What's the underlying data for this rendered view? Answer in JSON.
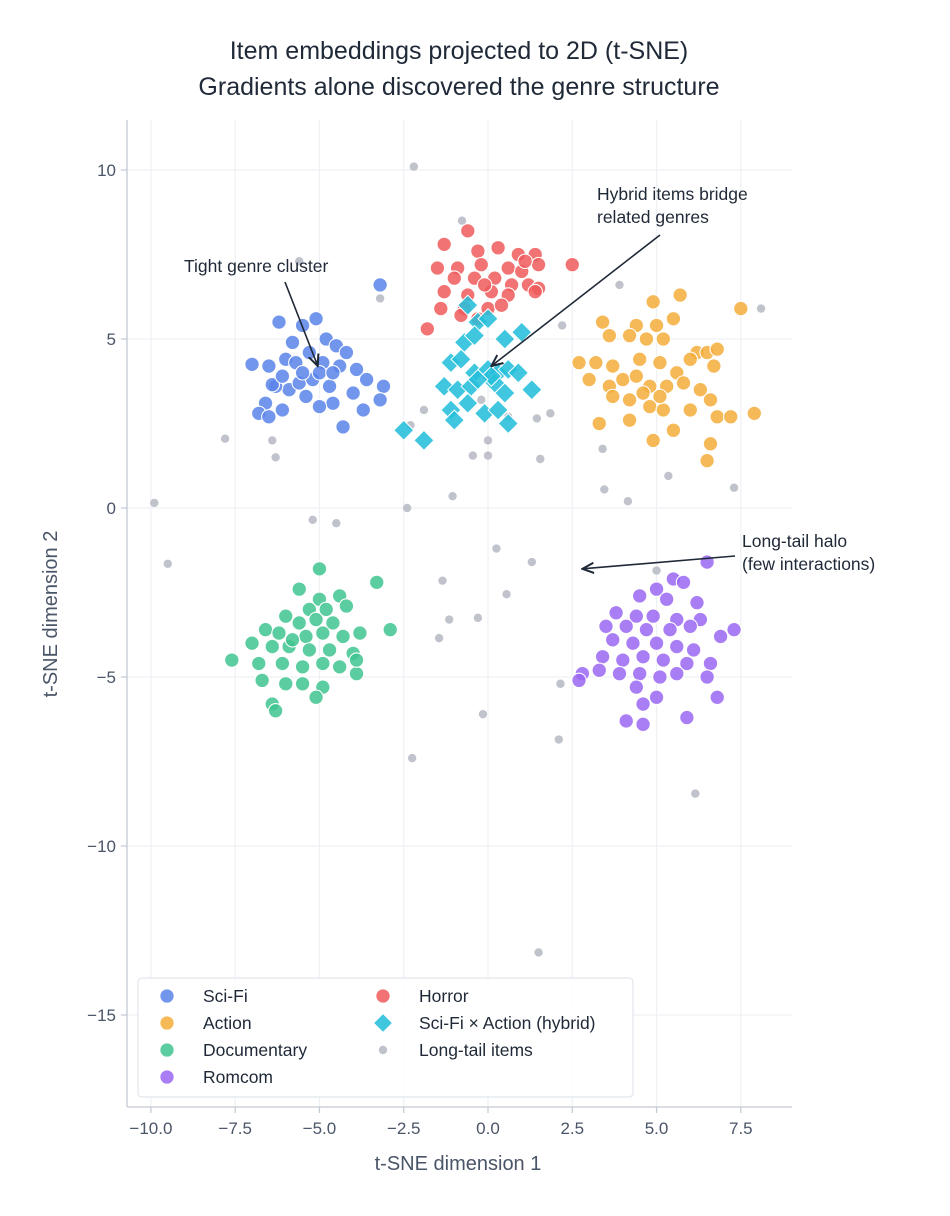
{
  "chart_data": {
    "type": "scatter",
    "title": "Item embeddings projected to 2D (t-SNE)",
    "subtitle": "Gradients alone discovered the genre structure",
    "xlabel": "t-SNE dimension 1",
    "ylabel": "t-SNE dimension 2",
    "xlim": [
      -10.7,
      9.0
    ],
    "ylim": [
      -17.7,
      11.5
    ],
    "x_ticks": [
      -10,
      -7.5,
      -5,
      -2.5,
      0,
      2.5,
      5,
      7.5
    ],
    "x_tick_labels": [
      "−10.0",
      "−7.5",
      "−5.0",
      "−2.5",
      "0.0",
      "2.5",
      "5.0",
      "7.5"
    ],
    "y_ticks": [
      10,
      5,
      0,
      -5,
      -10,
      -15
    ],
    "y_tick_labels": [
      "10",
      "5",
      "0",
      "−5",
      "−10",
      "−15"
    ],
    "grid": true,
    "legend_position": "bottom-left",
    "series": [
      {
        "name": "Sci-Fi",
        "marker": "circle",
        "color": "#5b84ea",
        "points": [
          [
            -5.1,
            5.6
          ],
          [
            -5.5,
            5.4
          ],
          [
            -6.2,
            5.5
          ],
          [
            -5.8,
            4.9
          ],
          [
            -4.8,
            5.0
          ],
          [
            -4.5,
            4.8
          ],
          [
            -4.2,
            4.6
          ],
          [
            -5.3,
            4.6
          ],
          [
            -6.0,
            4.4
          ],
          [
            -6.5,
            4.2
          ],
          [
            -7.0,
            4.25
          ],
          [
            -5.7,
            4.3
          ],
          [
            -4.9,
            4.3
          ],
          [
            -4.4,
            4.2
          ],
          [
            -3.9,
            4.1
          ],
          [
            -3.6,
            3.8
          ],
          [
            -3.1,
            3.6
          ],
          [
            -3.2,
            3.2
          ],
          [
            -3.7,
            2.9
          ],
          [
            -4.3,
            2.4
          ],
          [
            -4.6,
            3.1
          ],
          [
            -5.0,
            3.0
          ],
          [
            -5.4,
            3.3
          ],
          [
            -5.9,
            3.5
          ],
          [
            -6.3,
            3.6
          ],
          [
            -6.6,
            3.1
          ],
          [
            -6.8,
            2.8
          ],
          [
            -6.5,
            2.7
          ],
          [
            -6.1,
            2.9
          ],
          [
            -5.6,
            3.7
          ],
          [
            -5.2,
            3.8
          ],
          [
            -4.7,
            3.6
          ],
          [
            -4.0,
            3.4
          ],
          [
            -3.2,
            6.6
          ],
          [
            -6.4,
            3.65
          ],
          [
            -5.0,
            4.0
          ],
          [
            -4.6,
            4.0
          ],
          [
            -5.5,
            4.0
          ],
          [
            -6.1,
            3.9
          ]
        ]
      },
      {
        "name": "Action",
        "marker": "circle",
        "color": "#f5ad3b",
        "points": [
          [
            4.4,
            5.4
          ],
          [
            5.0,
            5.4
          ],
          [
            5.5,
            5.6
          ],
          [
            5.7,
            6.3
          ],
          [
            4.9,
            6.1
          ],
          [
            7.5,
            5.9
          ],
          [
            3.4,
            5.5
          ],
          [
            3.6,
            5.1
          ],
          [
            4.2,
            5.1
          ],
          [
            4.7,
            5.0
          ],
          [
            5.2,
            5.0
          ],
          [
            6.2,
            4.6
          ],
          [
            6.5,
            4.6
          ],
          [
            6.8,
            4.7
          ],
          [
            2.7,
            4.3
          ],
          [
            3.2,
            4.3
          ],
          [
            3.7,
            4.2
          ],
          [
            4.5,
            4.4
          ],
          [
            5.1,
            4.3
          ],
          [
            5.6,
            4.0
          ],
          [
            6.0,
            4.4
          ],
          [
            6.7,
            4.2
          ],
          [
            3.0,
            3.8
          ],
          [
            3.6,
            3.6
          ],
          [
            4.0,
            3.8
          ],
          [
            4.4,
            3.9
          ],
          [
            4.8,
            3.6
          ],
          [
            5.3,
            3.6
          ],
          [
            5.8,
            3.7
          ],
          [
            6.3,
            3.5
          ],
          [
            3.7,
            3.3
          ],
          [
            4.2,
            3.2
          ],
          [
            4.8,
            3.0
          ],
          [
            5.2,
            2.9
          ],
          [
            6.0,
            2.9
          ],
          [
            6.6,
            3.2
          ],
          [
            6.8,
            2.7
          ],
          [
            7.2,
            2.7
          ],
          [
            7.9,
            2.8
          ],
          [
            3.3,
            2.5
          ],
          [
            4.2,
            2.6
          ],
          [
            5.5,
            2.3
          ],
          [
            4.9,
            2.0
          ],
          [
            6.6,
            1.9
          ],
          [
            6.5,
            1.4
          ],
          [
            5.1,
            3.3
          ],
          [
            4.6,
            3.4
          ]
        ]
      },
      {
        "name": "Documentary",
        "marker": "circle",
        "color": "#3fc48f",
        "points": [
          [
            -5.0,
            -1.8
          ],
          [
            -3.3,
            -2.2
          ],
          [
            -5.6,
            -2.4
          ],
          [
            -5.0,
            -2.7
          ],
          [
            -4.4,
            -2.6
          ],
          [
            -5.3,
            -3.0
          ],
          [
            -4.8,
            -3.0
          ],
          [
            -4.2,
            -2.9
          ],
          [
            -6.0,
            -3.2
          ],
          [
            -5.6,
            -3.4
          ],
          [
            -5.1,
            -3.3
          ],
          [
            -4.6,
            -3.4
          ],
          [
            -2.9,
            -3.6
          ],
          [
            -6.6,
            -3.6
          ],
          [
            -6.2,
            -3.7
          ],
          [
            -5.4,
            -3.8
          ],
          [
            -4.9,
            -3.7
          ],
          [
            -4.3,
            -3.8
          ],
          [
            -3.8,
            -3.7
          ],
          [
            -7.0,
            -4.0
          ],
          [
            -6.4,
            -4.1
          ],
          [
            -5.9,
            -4.1
          ],
          [
            -5.3,
            -4.2
          ],
          [
            -4.7,
            -4.2
          ],
          [
            -4.0,
            -4.3
          ],
          [
            -7.6,
            -4.5
          ],
          [
            -6.8,
            -4.6
          ],
          [
            -6.1,
            -4.6
          ],
          [
            -5.5,
            -4.7
          ],
          [
            -4.9,
            -4.6
          ],
          [
            -4.4,
            -4.7
          ],
          [
            -3.9,
            -4.9
          ],
          [
            -6.7,
            -5.1
          ],
          [
            -6.0,
            -5.2
          ],
          [
            -5.5,
            -5.2
          ],
          [
            -4.9,
            -5.3
          ],
          [
            -5.1,
            -5.6
          ],
          [
            -6.4,
            -5.8
          ],
          [
            -6.3,
            -6.0
          ],
          [
            -3.9,
            -4.5
          ],
          [
            -5.8,
            -3.9
          ]
        ]
      },
      {
        "name": "Romcom",
        "marker": "circle",
        "color": "#9a66f2",
        "points": [
          [
            6.5,
            -1.6
          ],
          [
            5.5,
            -2.1
          ],
          [
            5.8,
            -2.2
          ],
          [
            5.0,
            -2.4
          ],
          [
            4.5,
            -2.6
          ],
          [
            5.3,
            -2.7
          ],
          [
            6.2,
            -2.8
          ],
          [
            3.8,
            -3.1
          ],
          [
            4.4,
            -3.2
          ],
          [
            4.9,
            -3.2
          ],
          [
            5.6,
            -3.3
          ],
          [
            6.3,
            -3.3
          ],
          [
            3.5,
            -3.5
          ],
          [
            4.1,
            -3.5
          ],
          [
            4.7,
            -3.6
          ],
          [
            5.4,
            -3.6
          ],
          [
            6.0,
            -3.5
          ],
          [
            7.3,
            -3.6
          ],
          [
            6.9,
            -3.8
          ],
          [
            3.7,
            -3.9
          ],
          [
            4.3,
            -4.0
          ],
          [
            5.0,
            -4.0
          ],
          [
            5.6,
            -4.1
          ],
          [
            6.1,
            -4.2
          ],
          [
            3.4,
            -4.4
          ],
          [
            4.0,
            -4.5
          ],
          [
            4.6,
            -4.4
          ],
          [
            5.2,
            -4.5
          ],
          [
            5.9,
            -4.6
          ],
          [
            6.6,
            -4.6
          ],
          [
            3.3,
            -4.8
          ],
          [
            3.9,
            -4.9
          ],
          [
            4.5,
            -4.9
          ],
          [
            5.1,
            -5.0
          ],
          [
            5.6,
            -4.9
          ],
          [
            6.5,
            -5.0
          ],
          [
            2.8,
            -4.9
          ],
          [
            2.7,
            -5.1
          ],
          [
            4.4,
            -5.3
          ],
          [
            5.0,
            -5.6
          ],
          [
            4.6,
            -5.8
          ],
          [
            6.8,
            -5.6
          ],
          [
            4.1,
            -6.3
          ],
          [
            4.6,
            -6.4
          ],
          [
            5.9,
            -6.2
          ]
        ]
      },
      {
        "name": "Horror",
        "marker": "circle",
        "color": "#ef5b5b",
        "points": [
          [
            -0.6,
            8.2
          ],
          [
            -1.3,
            7.8
          ],
          [
            -0.3,
            7.6
          ],
          [
            0.3,
            7.7
          ],
          [
            0.9,
            7.5
          ],
          [
            1.4,
            7.5
          ],
          [
            2.5,
            7.2
          ],
          [
            -1.5,
            7.1
          ],
          [
            -0.9,
            7.1
          ],
          [
            -0.2,
            7.2
          ],
          [
            0.6,
            7.1
          ],
          [
            1.0,
            7.0
          ],
          [
            1.5,
            7.2
          ],
          [
            -1.0,
            6.8
          ],
          [
            -0.4,
            6.8
          ],
          [
            0.2,
            6.8
          ],
          [
            0.7,
            6.6
          ],
          [
            1.2,
            6.6
          ],
          [
            1.5,
            6.5
          ],
          [
            -1.3,
            6.4
          ],
          [
            -0.6,
            6.3
          ],
          [
            0.1,
            6.4
          ],
          [
            0.6,
            6.3
          ],
          [
            1.4,
            6.4
          ],
          [
            -0.7,
            5.9
          ],
          [
            0.0,
            5.9
          ],
          [
            0.4,
            6.0
          ],
          [
            -1.8,
            5.3
          ],
          [
            -0.8,
            5.7
          ],
          [
            -0.3,
            5.6
          ],
          [
            1.1,
            7.3
          ],
          [
            -0.1,
            6.6
          ],
          [
            -1.4,
            5.9
          ]
        ]
      },
      {
        "name": "Sci-Fi × Action (hybrid)",
        "marker": "diamond",
        "color": "#26bfdb",
        "points": [
          [
            -0.6,
            6.0
          ],
          [
            -0.3,
            5.5
          ],
          [
            0.0,
            5.6
          ],
          [
            -0.7,
            4.9
          ],
          [
            -0.4,
            5.1
          ],
          [
            0.5,
            5.0
          ],
          [
            1.0,
            5.2
          ],
          [
            -1.1,
            4.3
          ],
          [
            -0.8,
            4.4
          ],
          [
            -0.4,
            4.0
          ],
          [
            0.0,
            4.1
          ],
          [
            0.3,
            4.0
          ],
          [
            0.6,
            4.1
          ],
          [
            0.9,
            4.0
          ],
          [
            -1.3,
            3.6
          ],
          [
            -0.9,
            3.5
          ],
          [
            -0.5,
            3.6
          ],
          [
            0.2,
            3.7
          ],
          [
            0.5,
            3.4
          ],
          [
            1.3,
            3.5
          ],
          [
            -1.1,
            2.9
          ],
          [
            -0.6,
            3.1
          ],
          [
            -0.1,
            2.8
          ],
          [
            0.3,
            2.9
          ],
          [
            -1.0,
            2.6
          ],
          [
            0.6,
            2.5
          ],
          [
            -2.5,
            2.3
          ],
          [
            -1.9,
            2.0
          ],
          [
            0.1,
            3.9
          ],
          [
            -0.3,
            3.8
          ]
        ]
      },
      {
        "name": "Long-tail items",
        "marker": "small-circle",
        "color": "#b9bdc5",
        "points": [
          [
            -2.2,
            10.1
          ],
          [
            -0.77,
            8.5
          ],
          [
            -5.6,
            7.3
          ],
          [
            -3.2,
            6.2
          ],
          [
            2.2,
            5.4
          ],
          [
            3.9,
            6.6
          ],
          [
            8.1,
            5.9
          ],
          [
            -7.8,
            2.05
          ],
          [
            -6.4,
            2.0
          ],
          [
            -6.3,
            1.5
          ],
          [
            -9.9,
            0.15
          ],
          [
            -9.5,
            -1.65
          ],
          [
            3.4,
            1.75
          ],
          [
            3.45,
            0.55
          ],
          [
            4.15,
            0.2
          ],
          [
            5.35,
            0.95
          ],
          [
            7.3,
            0.6
          ],
          [
            1.55,
            1.45
          ],
          [
            -0.45,
            1.55
          ],
          [
            0.0,
            1.55
          ],
          [
            0.0,
            2.0
          ],
          [
            -1.05,
            0.35
          ],
          [
            -2.4,
            0.0
          ],
          [
            -5.2,
            -0.35
          ],
          [
            -4.5,
            -0.45
          ],
          [
            0.25,
            -1.2
          ],
          [
            1.3,
            -1.6
          ],
          [
            -1.35,
            -2.15
          ],
          [
            0.55,
            -2.55
          ],
          [
            5.0,
            -1.85
          ],
          [
            -1.15,
            -3.3
          ],
          [
            -0.3,
            -3.25
          ],
          [
            -1.45,
            -3.85
          ],
          [
            2.15,
            -5.2
          ],
          [
            -0.15,
            -6.1
          ],
          [
            2.1,
            -6.85
          ],
          [
            -2.25,
            -7.4
          ],
          [
            6.15,
            -8.45
          ],
          [
            1.5,
            -13.15
          ],
          [
            -2.3,
            2.45
          ],
          [
            -1.9,
            2.9
          ],
          [
            1.45,
            2.65
          ],
          [
            1.85,
            2.8
          ],
          [
            0.6,
            2.7
          ],
          [
            -0.2,
            3.2
          ]
        ]
      }
    ],
    "annotations": [
      {
        "text": "Tight genre cluster",
        "target": [
          -5.05,
          4.2
        ]
      },
      {
        "text_lines": [
          "Hybrid items bridge",
          "related genres"
        ],
        "target": [
          0.1,
          4.2
        ]
      },
      {
        "text_lines": [
          "Long-tail halo",
          "(few interactions)"
        ],
        "target": [
          2.8,
          -1.8
        ]
      }
    ]
  }
}
